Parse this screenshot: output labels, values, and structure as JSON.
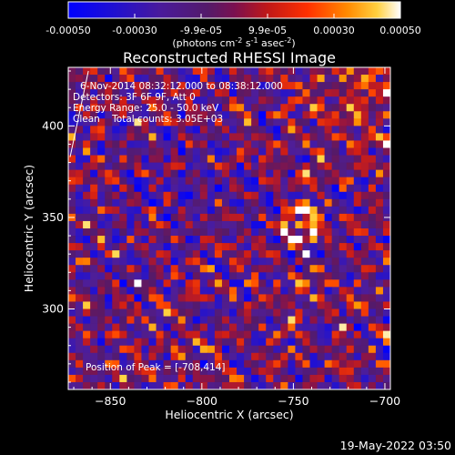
{
  "colorbar": {
    "ticks": [
      "-0.00050",
      "-0.00030",
      "-9.9e-05",
      "9.9e-05",
      "0.00030",
      "0.00050"
    ],
    "unit_main": "(photons cm",
    "unit_sup1": "-2",
    "unit_mid1": " s",
    "unit_sup2": "-1",
    "unit_mid2": " asec",
    "unit_sup3": "-2",
    "unit_end": ")",
    "range": [
      -0.0005,
      0.0005
    ]
  },
  "chart_data": {
    "type": "heatmap",
    "title": "Reconstructed RHESSI Image",
    "xlabel": "Heliocentric X (arcsec)",
    "ylabel": "Heliocentric Y (arcsec)",
    "xlim": [
      -873,
      -697
    ],
    "ylim": [
      256,
      432
    ],
    "x_ticks": [
      -850,
      -800,
      -750,
      -700
    ],
    "y_ticks": [
      300,
      350,
      400
    ],
    "x_tick_labels": [
      "−850",
      "−800",
      "−750",
      "−700"
    ],
    "y_tick_labels": [
      "300",
      "350",
      "400"
    ],
    "peak": {
      "x": -708,
      "y": 414
    },
    "limb_line": {
      "x": [
        -872,
        -862
      ],
      "y": [
        383,
        430
      ]
    },
    "annotations": [
      "6-Nov-2014 08:32:12.000 to 08:38:12.000",
      "Detectors: 3F 6F 9F, Att 0",
      "Energy Range: 25.0 - 50.0 keV",
      "Clean    Total counts: 3.05E+03",
      "Position of Peak = [-708,414]"
    ]
  },
  "footer": {
    "timestamp": "19-May-2022 03:50"
  },
  "colors": {
    "background": "#000000",
    "foreground": "#ffffff"
  }
}
